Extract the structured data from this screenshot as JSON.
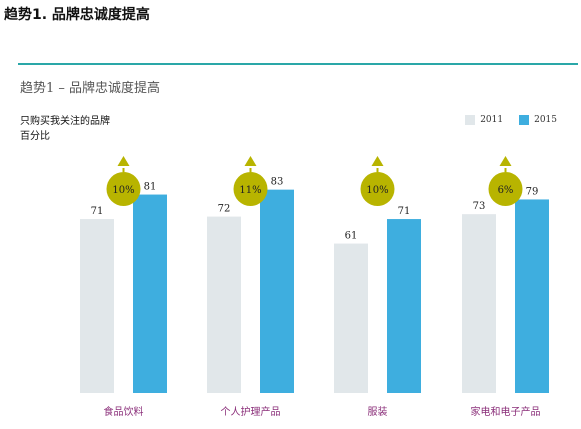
{
  "page": {
    "heading": "趋势1. 品牌忠诚度提高"
  },
  "chart_data": {
    "type": "bar",
    "title": "趋势1 – 品牌忠诚度提高",
    "subtitle_line1": "只购买我关注的品牌",
    "subtitle_line2": "百分比",
    "categories": [
      "食品饮料",
      "个人护理产品",
      "服装",
      "家电和电子产品"
    ],
    "series": [
      {
        "name": "2011",
        "values": [
          71,
          72,
          61,
          73
        ],
        "color": "#e1e7ea"
      },
      {
        "name": "2015",
        "values": [
          81,
          83,
          71,
          79
        ],
        "color": "#3eaedf"
      }
    ],
    "changes": [
      "10%",
      "11%",
      "10%",
      "6%"
    ],
    "change_color": "#b8b400",
    "category_label_color": "#8b2f7a",
    "ylim": [
      0,
      100
    ],
    "legend_position": "top-right",
    "grid": false
  }
}
